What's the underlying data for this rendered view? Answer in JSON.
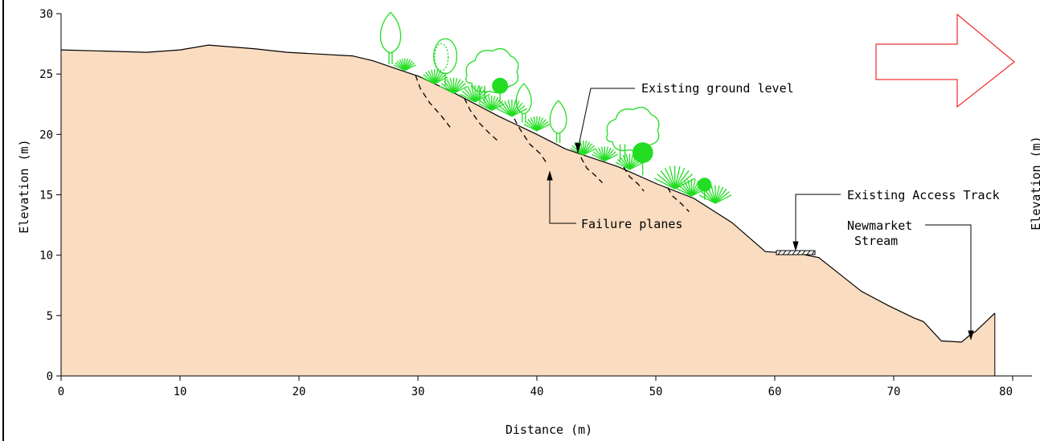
{
  "chart_data": {
    "type": "area",
    "title": "",
    "xlabel": "Distance (m)",
    "ylabel": "Elevation (m)",
    "ylabel_right": "Elevation (m)",
    "xlim": [
      0,
      80
    ],
    "ylim": [
      0,
      30
    ],
    "x_ticks": [
      0,
      10,
      20,
      30,
      40,
      50,
      60,
      70,
      80
    ],
    "y_ticks": [
      0,
      5,
      10,
      15,
      20,
      25,
      30
    ],
    "grid": false,
    "fill_color": "#fadcc0",
    "ground_profile": {
      "x": [
        0,
        7.2,
        10,
        12.4,
        16.2,
        19,
        24.5,
        26.2,
        28.3,
        30.1,
        33.1,
        36.8,
        40,
        42.4,
        45.4,
        46.9,
        50.1,
        53.2,
        56.4,
        59.2,
        62.2,
        63.7,
        67.3,
        69.6,
        71.7,
        72.5,
        74.0,
        75.7,
        76.3,
        76.9,
        78.5
      ],
      "y": [
        27.0,
        26.8,
        27.0,
        27.4,
        27.1,
        26.8,
        26.5,
        26.1,
        25.4,
        24.8,
        23.4,
        21.5,
        20.0,
        18.8,
        17.8,
        17.3,
        15.9,
        14.7,
        12.7,
        10.3,
        10.1,
        9.8,
        7.0,
        5.8,
        4.8,
        4.5,
        2.9,
        2.8,
        3.3,
        3.7,
        5.2
      ]
    }
  },
  "annotations": {
    "ground_level": "Existing ground level",
    "failure_planes": "Failure planes",
    "access_track": "Existing Access Track",
    "stream_line1": "Newmarket",
    "stream_line2": "Stream"
  },
  "failure_planes": [
    {
      "x": [
        29.8,
        30.2,
        31.0,
        32.0,
        32.7
      ],
      "y": [
        24.9,
        23.8,
        22.6,
        21.5,
        20.6
      ]
    },
    {
      "x": [
        33.9,
        34.4,
        35.2,
        36.0,
        36.8
      ],
      "y": [
        23.0,
        22.0,
        20.9,
        20.1,
        19.4
      ]
    },
    {
      "x": [
        38.1,
        38.6,
        39.4,
        40.3,
        40.9
      ],
      "y": [
        21.3,
        20.4,
        19.2,
        18.4,
        17.5
      ]
    },
    {
      "x": [
        43.7,
        44.2,
        44.9,
        45.5
      ],
      "y": [
        18.1,
        17.2,
        16.6,
        16.0
      ]
    },
    {
      "x": [
        47.3,
        47.8,
        48.5,
        49.0
      ],
      "y": [
        17.3,
        16.5,
        15.9,
        15.3
      ]
    },
    {
      "x": [
        51.0,
        51.4,
        52.1,
        52.8
      ],
      "y": [
        15.6,
        14.9,
        14.3,
        13.6
      ]
    }
  ],
  "vegetation": [
    {
      "kind": "poplar",
      "x": 27.7,
      "y": 25.8,
      "h": 4.3
    },
    {
      "kind": "bush",
      "x": 28.9,
      "y": 25.3,
      "h": 1.0
    },
    {
      "kind": "broadleaf",
      "x": 32.3,
      "y": 24.0,
      "h": 4.0
    },
    {
      "kind": "bush",
      "x": 31.4,
      "y": 24.2,
      "h": 1.2
    },
    {
      "kind": "bush",
      "x": 33.0,
      "y": 23.4,
      "h": 1.3
    },
    {
      "kind": "round",
      "x": 35.4,
      "y": 22.6,
      "h": 4.2
    },
    {
      "kind": "bush",
      "x": 34.8,
      "y": 22.7,
      "h": 1.4
    },
    {
      "kind": "bush",
      "x": 36.2,
      "y": 22.0,
      "h": 1.2
    },
    {
      "kind": "small-round",
      "x": 36.9,
      "y": 22.6,
      "h": 2.2
    },
    {
      "kind": "poplar",
      "x": 38.9,
      "y": 21.0,
      "h": 3.2
    },
    {
      "kind": "bush",
      "x": 37.9,
      "y": 21.5,
      "h": 1.4
    },
    {
      "kind": "bush",
      "x": 40.0,
      "y": 20.3,
      "h": 1.2
    },
    {
      "kind": "poplar",
      "x": 41.8,
      "y": 19.3,
      "h": 3.5
    },
    {
      "kind": "bush",
      "x": 43.9,
      "y": 18.3,
      "h": 1.2
    },
    {
      "kind": "round",
      "x": 47.2,
      "y": 17.8,
      "h": 4.1
    },
    {
      "kind": "bush",
      "x": 45.7,
      "y": 17.8,
      "h": 1.2
    },
    {
      "kind": "bush",
      "x": 47.8,
      "y": 17.1,
      "h": 1.3
    },
    {
      "kind": "small-round",
      "x": 48.9,
      "y": 16.6,
      "h": 2.9
    },
    {
      "kind": "bush",
      "x": 51.6,
      "y": 15.5,
      "h": 1.9
    },
    {
      "kind": "bush",
      "x": 53.0,
      "y": 14.9,
      "h": 1.4
    },
    {
      "kind": "small-round",
      "x": 54.1,
      "y": 14.6,
      "h": 1.9
    },
    {
      "kind": "bush",
      "x": 55.0,
      "y": 14.3,
      "h": 1.5
    }
  ],
  "colors": {
    "fill": "#fadcc0",
    "vegetation": "#22dd22",
    "arrow": "#ee0000",
    "line": "#000000"
  }
}
